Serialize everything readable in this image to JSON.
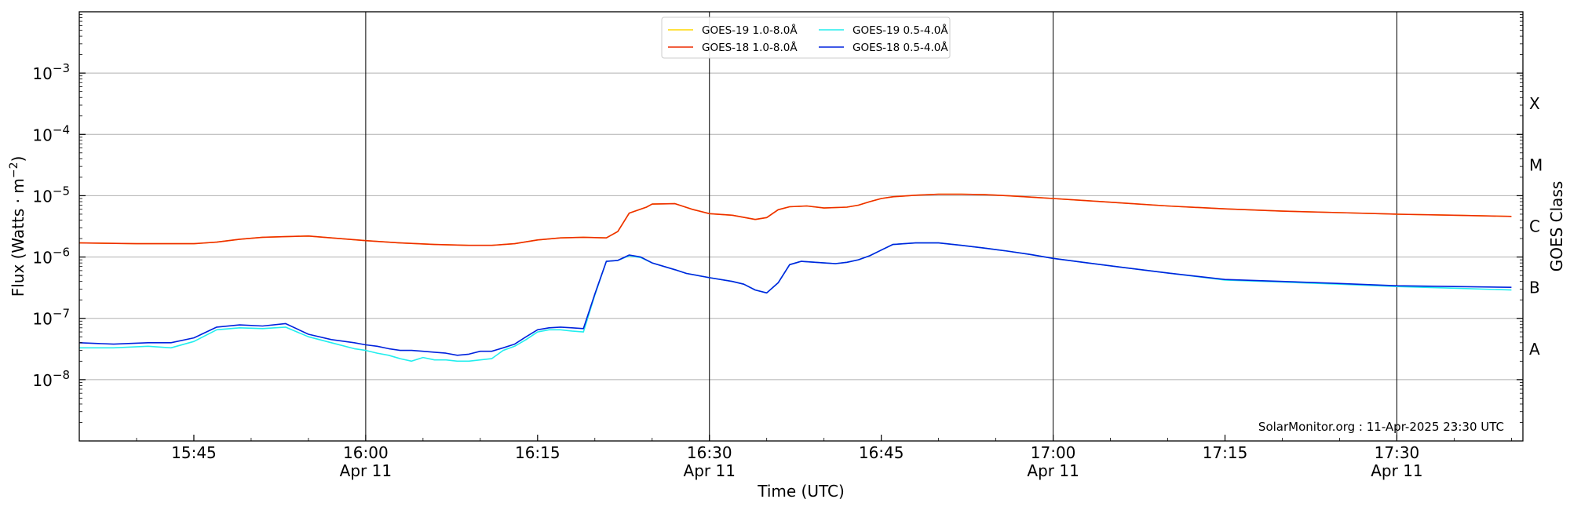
{
  "chart_data": {
    "type": "line",
    "xlabel": "Time (UTC)",
    "ylabel_main": "Flux (Watts · m",
    "ylabel_exp": "−2",
    "ylabel_close": ")",
    "ylabel_right": "GOES Class",
    "y_scale": "log",
    "ylim_exp": [
      -9,
      -2
    ],
    "xlim_min": [
      -25,
      101
    ],
    "grid": "horizontal",
    "legend_position": "top-center",
    "y_ticks": [
      {
        "exp": -8,
        "base": "10",
        "sup": "−8"
      },
      {
        "exp": -7,
        "base": "10",
        "sup": "−7"
      },
      {
        "exp": -6,
        "base": "10",
        "sup": "−6"
      },
      {
        "exp": -5,
        "base": "10",
        "sup": "−5"
      },
      {
        "exp": -4,
        "base": "10",
        "sup": "−4"
      },
      {
        "exp": -3,
        "base": "10",
        "sup": "−3"
      }
    ],
    "x_ticks": [
      {
        "min": -15,
        "time": "15:45",
        "date": ""
      },
      {
        "min": 0,
        "time": "16:00",
        "date": "Apr 11"
      },
      {
        "min": 15,
        "time": "16:15",
        "date": ""
      },
      {
        "min": 30,
        "time": "16:30",
        "date": "Apr 11"
      },
      {
        "min": 45,
        "time": "16:45",
        "date": ""
      },
      {
        "min": 60,
        "time": "17:00",
        "date": "Apr 11"
      },
      {
        "min": 75,
        "time": "17:15",
        "date": ""
      },
      {
        "min": 90,
        "time": "17:30",
        "date": "Apr 11"
      }
    ],
    "vlines_min": [
      0,
      30,
      60,
      90
    ],
    "goes_classes": [
      {
        "label": "A",
        "exp": -7.5
      },
      {
        "label": "B",
        "exp": -6.5
      },
      {
        "label": "C",
        "exp": -5.5
      },
      {
        "label": "M",
        "exp": -4.5
      },
      {
        "label": "X",
        "exp": -3.5
      }
    ],
    "credit": "SolarMonitor.org : 11-Apr-2025 23:30 UTC",
    "legend": [
      {
        "name": "GOES-19 1.0-8.0Å",
        "color": "#ffd700"
      },
      {
        "name": "GOES-18 1.0-8.0Å",
        "color": "#ee2c00"
      },
      {
        "name": "GOES-19 0.5-4.0Å",
        "color": "#22eeee"
      },
      {
        "name": "GOES-18 0.5-4.0Å",
        "color": "#0022dd"
      }
    ],
    "series": [
      {
        "name": "GOES-19 1.0-8.0Å",
        "color": "#ffd700",
        "x_min": [
          -25,
          -20,
          -15,
          -13,
          -11,
          -9,
          -7,
          -5,
          -3,
          0,
          3,
          6,
          9,
          11,
          13,
          15,
          17,
          19,
          21,
          22,
          23,
          24.5,
          25,
          27,
          28.5,
          30,
          32,
          34,
          35,
          36,
          37,
          38.5,
          40,
          42,
          43,
          44,
          45,
          46,
          48,
          50,
          52,
          54,
          56,
          58,
          60,
          63,
          66,
          70,
          75,
          80,
          85,
          90,
          95,
          100
        ],
        "y": [
          1.7e-06,
          1.65e-06,
          1.65e-06,
          1.75e-06,
          1.95e-06,
          2.1e-06,
          2.15e-06,
          2.2e-06,
          2.05e-06,
          1.85e-06,
          1.7e-06,
          1.6e-06,
          1.55e-06,
          1.55e-06,
          1.65e-06,
          1.9e-06,
          2.05e-06,
          2.1e-06,
          2.05e-06,
          2.6e-06,
          5.2e-06,
          6.5e-06,
          7.3e-06,
          7.4e-06,
          6e-06,
          5.1e-06,
          4.8e-06,
          4.1e-06,
          4.4e-06,
          5.9e-06,
          6.6e-06,
          6.8e-06,
          6.3e-06,
          6.5e-06,
          7e-06,
          8e-06,
          9e-06,
          9.6e-06,
          1.02e-05,
          1.06e-05,
          1.06e-05,
          1.04e-05,
          1e-05,
          9.5e-06,
          9e-06,
          8.3e-06,
          7.6e-06,
          6.8e-06,
          6.1e-06,
          5.6e-06,
          5.3e-06,
          5e-06,
          4.8e-06,
          4.6e-06
        ]
      },
      {
        "name": "GOES-18 1.0-8.0Å",
        "color": "#ee2c00",
        "x_min": [
          -25,
          -20,
          -15,
          -13,
          -11,
          -9,
          -7,
          -5,
          -3,
          0,
          3,
          6,
          9,
          11,
          13,
          15,
          17,
          19,
          21,
          22,
          23,
          24.5,
          25,
          27,
          28.5,
          30,
          32,
          34,
          35,
          36,
          37,
          38.5,
          40,
          42,
          43,
          44,
          45,
          46,
          48,
          50,
          52,
          54,
          56,
          58,
          60,
          63,
          66,
          70,
          75,
          80,
          85,
          90,
          95,
          100
        ],
        "y": [
          1.7e-06,
          1.65e-06,
          1.65e-06,
          1.75e-06,
          1.95e-06,
          2.1e-06,
          2.15e-06,
          2.2e-06,
          2.05e-06,
          1.85e-06,
          1.7e-06,
          1.6e-06,
          1.55e-06,
          1.55e-06,
          1.65e-06,
          1.9e-06,
          2.05e-06,
          2.1e-06,
          2.05e-06,
          2.6e-06,
          5.2e-06,
          6.5e-06,
          7.3e-06,
          7.4e-06,
          6e-06,
          5.1e-06,
          4.8e-06,
          4.1e-06,
          4.4e-06,
          5.9e-06,
          6.6e-06,
          6.8e-06,
          6.3e-06,
          6.5e-06,
          7e-06,
          8e-06,
          9e-06,
          9.6e-06,
          1.02e-05,
          1.06e-05,
          1.06e-05,
          1.04e-05,
          1e-05,
          9.5e-06,
          9e-06,
          8.3e-06,
          7.6e-06,
          6.8e-06,
          6.1e-06,
          5.6e-06,
          5.3e-06,
          5e-06,
          4.8e-06,
          4.6e-06
        ]
      },
      {
        "name": "GOES-19 0.5-4.0Å",
        "color": "#22eeee",
        "x_min": [
          -25,
          -22,
          -19,
          -17,
          -15,
          -13,
          -11,
          -9,
          -7,
          -5,
          -3,
          -1,
          0,
          1,
          2,
          3,
          4,
          5,
          6,
          7,
          8,
          9,
          10,
          11,
          12,
          13,
          14,
          15,
          16,
          17,
          18,
          19,
          20,
          21,
          22,
          23,
          24,
          25,
          27,
          28,
          30,
          32,
          33,
          34,
          35,
          36,
          37,
          38,
          40,
          41,
          42,
          43,
          44,
          45,
          46,
          48,
          50,
          52,
          54,
          56,
          58,
          60,
          63,
          66,
          70,
          75,
          80,
          85,
          90,
          95,
          100
        ],
        "y": [
          3.3e-08,
          3.3e-08,
          3.5e-08,
          3.3e-08,
          4.2e-08,
          6.5e-08,
          7e-08,
          6.8e-08,
          7.2e-08,
          5e-08,
          4e-08,
          3.2e-08,
          3e-08,
          2.7e-08,
          2.5e-08,
          2.2e-08,
          2e-08,
          2.3e-08,
          2.1e-08,
          2.1e-08,
          2e-08,
          2e-08,
          2.1e-08,
          2.2e-08,
          3e-08,
          3.5e-08,
          4.5e-08,
          6e-08,
          6.5e-08,
          6.5e-08,
          6.2e-08,
          6e-08,
          2.4e-07,
          8.5e-07,
          8.8e-07,
          1.05e-06,
          9.8e-07,
          8e-07,
          6.2e-07,
          5.4e-07,
          4.6e-07,
          4e-07,
          3.6e-07,
          2.9e-07,
          2.6e-07,
          3.8e-07,
          7.5e-07,
          8.5e-07,
          8e-07,
          7.8e-07,
          8.2e-07,
          9e-07,
          1.05e-06,
          1.3e-06,
          1.6e-06,
          1.7e-06,
          1.7e-06,
          1.55e-06,
          1.4e-06,
          1.25e-06,
          1.1e-06,
          9.5e-07,
          8e-07,
          6.8e-07,
          5.5e-07,
          4.2e-07,
          3.9e-07,
          3.6e-07,
          3.3e-07,
          3.1e-07,
          2.9e-07
        ]
      },
      {
        "name": "GOES-18 0.5-4.0Å",
        "color": "#0022dd",
        "x_min": [
          -25,
          -22,
          -19,
          -17,
          -15,
          -13,
          -11,
          -9,
          -7,
          -5,
          -3,
          -1,
          0,
          1,
          2,
          3,
          4,
          5,
          6,
          7,
          8,
          9,
          10,
          11,
          12,
          13,
          14,
          15,
          16,
          17,
          18,
          19,
          20,
          21,
          22,
          23,
          24,
          25,
          27,
          28,
          30,
          32,
          33,
          34,
          35,
          36,
          37,
          38,
          40,
          41,
          42,
          43,
          44,
          45,
          46,
          48,
          50,
          52,
          54,
          56,
          58,
          60,
          63,
          66,
          70,
          75,
          80,
          85,
          90,
          95,
          100
        ],
        "y": [
          4e-08,
          3.8e-08,
          4e-08,
          4e-08,
          4.8e-08,
          7.2e-08,
          7.8e-08,
          7.5e-08,
          8.2e-08,
          5.5e-08,
          4.5e-08,
          4e-08,
          3.7e-08,
          3.5e-08,
          3.2e-08,
          3e-08,
          3e-08,
          2.9e-08,
          2.8e-08,
          2.7e-08,
          2.5e-08,
          2.6e-08,
          2.9e-08,
          2.9e-08,
          3.3e-08,
          3.8e-08,
          5e-08,
          6.5e-08,
          7e-08,
          7.2e-08,
          7e-08,
          6.8e-08,
          2.5e-07,
          8.5e-07,
          8.8e-07,
          1.08e-06,
          1e-06,
          8e-07,
          6.2e-07,
          5.4e-07,
          4.6e-07,
          4e-07,
          3.6e-07,
          2.9e-07,
          2.6e-07,
          3.8e-07,
          7.5e-07,
          8.5e-07,
          8e-07,
          7.8e-07,
          8.2e-07,
          9e-07,
          1.05e-06,
          1.3e-06,
          1.6e-06,
          1.7e-06,
          1.7e-06,
          1.55e-06,
          1.4e-06,
          1.25e-06,
          1.1e-06,
          9.5e-07,
          8e-07,
          6.8e-07,
          5.5e-07,
          4.3e-07,
          4e-07,
          3.7e-07,
          3.4e-07,
          3.3e-07,
          3.2e-07
        ]
      }
    ]
  }
}
